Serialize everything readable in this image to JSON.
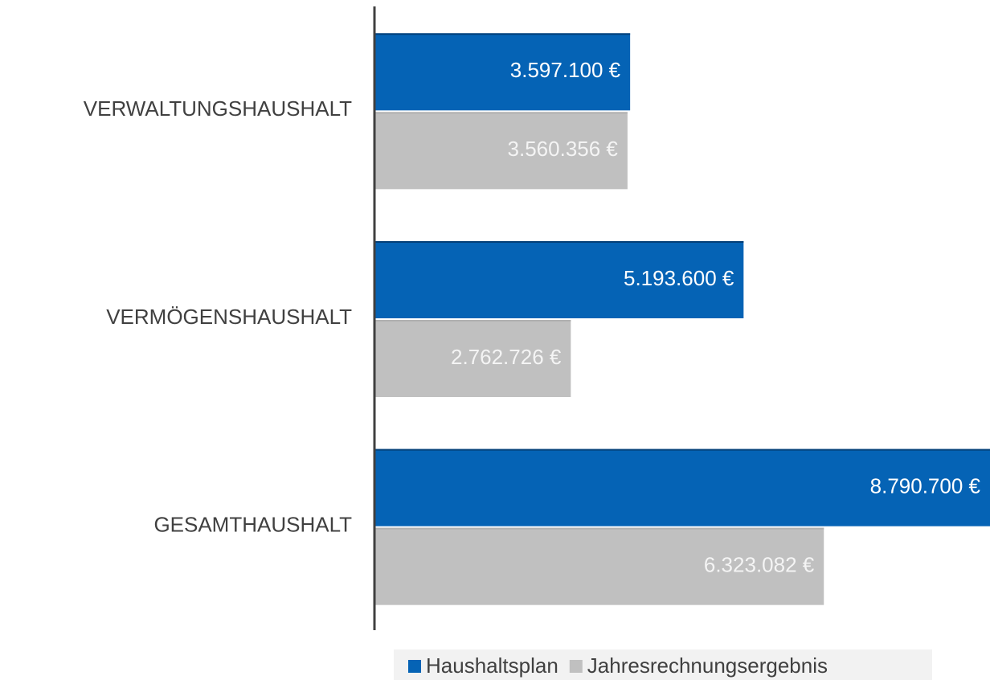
{
  "chart_data": {
    "type": "bar",
    "orientation": "horizontal",
    "categories": [
      "VERWALTUNGSHAUSHALT",
      "VERMÖGENSHAUSHALT",
      "GESAMTHAUSHALT"
    ],
    "series": [
      {
        "name": "Haushaltsplan",
        "color": "#0563b5",
        "values": [
          3597100,
          5193600,
          8790700
        ],
        "value_labels": [
          "3.597.100 €",
          "5.193.600 €",
          "8.790.700 €"
        ]
      },
      {
        "name": "Jahresrechnungsergebnis",
        "color": "#c0c0c0",
        "values": [
          3560356,
          2762726,
          6323082
        ],
        "value_labels": [
          "3.560.356 €",
          "2.762.726 €",
          "6.323.082 €"
        ]
      }
    ],
    "xlim": [
      0,
      9000000
    ],
    "legend": "bottom"
  }
}
